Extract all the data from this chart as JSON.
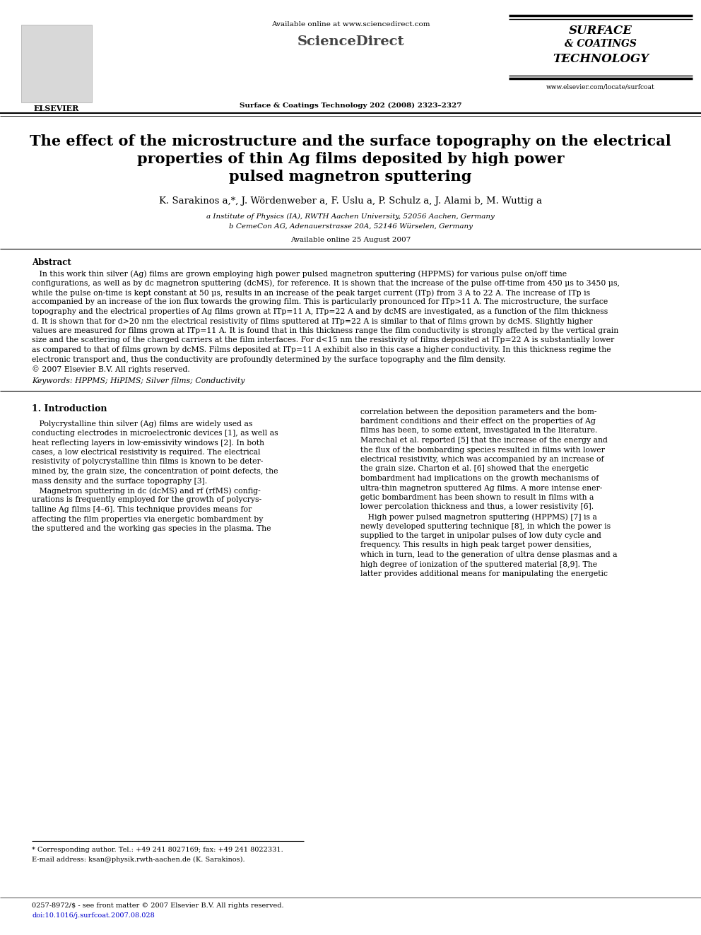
{
  "bg_color": "#ffffff",
  "elsevier_text": "ELSEVIER",
  "available_online_text": "Available online at www.sciencedirect.com",
  "sciencedirect_text": "ScienceDirect",
  "journal_center": "Surface & Coatings Technology 202 (2008) 2323–2327",
  "journal_right_line1": "SURFACE",
  "journal_right_line2": "& COATINGS",
  "journal_right_line3": "TECHNOLOGY",
  "journal_right_url": "www.elsevier.com/locate/surfcoat",
  "title_line1": "The effect of the microstructure and the surface topography on the electrical",
  "title_line2": "properties of thin Ag films deposited by high power",
  "title_line3": "pulsed magnetron sputtering",
  "authors": "K. Sarakinos a,*, J. Wördenweber a, F. Uslu a, P. Schulz a, J. Alami b, M. Wuttig a",
  "affil_a": "a Institute of Physics (IA), RWTH Aachen University, 52056 Aachen, Germany",
  "affil_b": "b CemeCon AG, Adenauerstrasse 20A, 52146 Würselen, Germany",
  "available_date": "Available online 25 August 2007",
  "abstract_title": "Abstract",
  "abstract_body": "   In this work thin silver (Ag) films are grown employing high power pulsed magnetron sputtering (HPPMS) for various pulse on/off time\nconfigurations, as well as by dc magnetron sputtering (dcMS), for reference. It is shown that the increase of the pulse off-time from 450 μs to 3450 μs,\nwhile the pulse on-time is kept constant at 50 μs, results in an increase of the peak target current (ITp) from 3 A to 22 A. The increase of ITp is\naccompanied by an increase of the ion flux towards the growing film. This is particularly pronounced for ITp>11 A. The microstructure, the surface\ntopography and the electrical properties of Ag films grown at ITp=11 A, ITp=22 A and by dcMS are investigated, as a function of the film thickness\nd. It is shown that for d>20 nm the electrical resistivity of films sputtered at ITp=22 A is similar to that of films grown by dcMS. Slightly higher\nvalues are measured for films grown at ITp=11 A. It is found that in this thickness range the film conductivity is strongly affected by the vertical grain\nsize and the scattering of the charged carriers at the film interfaces. For d<15 nm the resistivity of films deposited at ITp=22 A is substantially lower\nas compared to that of films grown by dcMS. Films deposited at ITp=11 A exhibit also in this case a higher conductivity. In this thickness regime the\nelectronic transport and, thus the conductivity are profoundly determined by the surface topography and the film density.\n© 2007 Elsevier B.V. All rights reserved.",
  "keywords_text": "Keywords: HPPMS; HiPIMS; Silver films; Conductivity",
  "section1_title": "1. Introduction",
  "intro_col1_lines": [
    "   Polycrystalline thin silver (Ag) films are widely used as",
    "conducting electrodes in microelectronic devices [1], as well as",
    "heat reflecting layers in low-emissivity windows [2]. In both",
    "cases, a low electrical resistivity is required. The electrical",
    "resistivity of polycrystalline thin films is known to be deter-",
    "mined by, the grain size, the concentration of point defects, the",
    "mass density and the surface topography [3].",
    "   Magnetron sputtering in dc (dcMS) and rf (rfMS) config-",
    "urations is frequently employed for the growth of polycrys-",
    "talline Ag films [4–6]. This technique provides means for",
    "affecting the film properties via energetic bombardment by",
    "the sputtered and the working gas species in the plasma. The"
  ],
  "intro_col2_lines": [
    "correlation between the deposition parameters and the bom-",
    "bardment conditions and their effect on the properties of Ag",
    "films has been, to some extent, investigated in the literature.",
    "Marechal et al. reported [5] that the increase of the energy and",
    "the flux of the bombarding species resulted in films with lower",
    "electrical resistivity, which was accompanied by an increase of",
    "the grain size. Charton et al. [6] showed that the energetic",
    "bombardment had implications on the growth mechanisms of",
    "ultra-thin magnetron sputtered Ag films. A more intense ener-",
    "getic bombardment has been shown to result in films with a",
    "lower percolation thickness and thus, a lower resistivity [6].",
    "   High power pulsed magnetron sputtering (HPPMS) [7] is a",
    "newly developed sputtering technique [8], in which the power is",
    "supplied to the target in unipolar pulses of low duty cycle and",
    "frequency. This results in high peak target power densities,",
    "which in turn, lead to the generation of ultra dense plasmas and a",
    "high degree of ionization of the sputtered material [8,9]. The",
    "latter provides additional means for manipulating the energetic"
  ],
  "footnote_star": "* Corresponding author. Tel.: +49 241 8027169; fax: +49 241 8022331.",
  "footnote_email": "E-mail address: ksan@physik.rwth-aachen.de (K. Sarakinos).",
  "footer_issn": "0257-8972/$ - see front matter © 2007 Elsevier B.V. All rights reserved.",
  "footer_doi": "doi:10.1016/j.surfcoat.2007.08.028"
}
